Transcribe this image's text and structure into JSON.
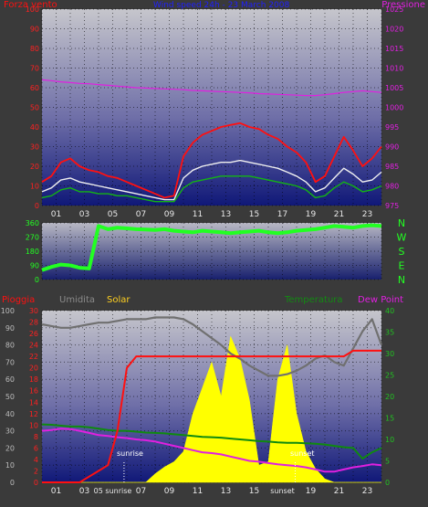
{
  "chart_data": [
    {
      "type": "line",
      "title": "Wind speed 24h - 23 March 2008",
      "left_label": "Forza vento",
      "right_label": "Pressione",
      "x_ticks": [
        "01",
        "03",
        "05",
        "07",
        "09",
        "11",
        "13",
        "15",
        "17",
        "19",
        "21",
        "23"
      ],
      "x_range": [
        0,
        24
      ],
      "ylim_left": [
        0,
        100
      ],
      "left_ticks": [
        "0",
        "10",
        "20",
        "30",
        "40",
        "50",
        "60",
        "70",
        "80",
        "90",
        "100"
      ],
      "ylim_right": [
        975,
        1025
      ],
      "right_ticks": [
        "975",
        "980",
        "985",
        "990",
        "995",
        "1000",
        "1005",
        "1010",
        "1015",
        "1020",
        "1025"
      ],
      "grid": true,
      "series": [
        {
          "color": "#ff1010",
          "values": [
            12,
            15,
            22,
            24,
            20,
            18,
            17,
            15,
            14,
            12,
            10,
            8,
            6,
            4,
            5,
            25,
            32,
            36,
            38,
            40,
            41,
            42,
            40,
            39,
            36,
            34,
            30,
            27,
            22,
            12,
            15,
            25,
            35,
            28,
            20,
            24,
            30
          ]
        },
        {
          "color": "#f0f0f0",
          "values": [
            7,
            9,
            13,
            14,
            12,
            11,
            10,
            9,
            8,
            7,
            6,
            5,
            4,
            3,
            3,
            14,
            18,
            20,
            21,
            22,
            22,
            23,
            22,
            21,
            20,
            19,
            17,
            15,
            12,
            7,
            9,
            14,
            19,
            16,
            12,
            13,
            17
          ]
        },
        {
          "color": "#14b414",
          "values": [
            4,
            5,
            8,
            9,
            7,
            7,
            6,
            6,
            5,
            5,
            4,
            3,
            2,
            2,
            2,
            9,
            12,
            13,
            14,
            15,
            15,
            15,
            15,
            14,
            13,
            12,
            11,
            10,
            8,
            4,
            5,
            9,
            12,
            10,
            7,
            8,
            10
          ]
        },
        {
          "color": "#e020e0",
          "axis": "right",
          "values": [
            1007,
            1006.8,
            1006.5,
            1006.3,
            1006.1,
            1006.0,
            1005.8,
            1005.6,
            1005.4,
            1005.2,
            1005.0,
            1004.9,
            1004.8,
            1004.7,
            1004.6,
            1004.5,
            1004.3,
            1004.2,
            1004.1,
            1004.0,
            1003.9,
            1003.8,
            1003.7,
            1003.5,
            1003.4,
            1003.3,
            1003.2,
            1003.1,
            1003.0,
            1003.0,
            1003.2,
            1003.5,
            1003.8,
            1004.0,
            1004.2,
            1004.0,
            1003.8
          ]
        }
      ]
    },
    {
      "type": "scatter",
      "left_ticks": [
        "0",
        "90",
        "180",
        "270",
        "360"
      ],
      "ylim": [
        0,
        360
      ],
      "right_labels": [
        "N",
        "W",
        "S",
        "E",
        "N"
      ],
      "series": [
        {
          "color": "#22ff22",
          "values": [
            60,
            80,
            95,
            90,
            75,
            70,
            340,
            320,
            330,
            325,
            320,
            318,
            315,
            320,
            310,
            305,
            300,
            310,
            305,
            300,
            295,
            300,
            305,
            310,
            300,
            295,
            300,
            310,
            315,
            320,
            330,
            340,
            335,
            330,
            340,
            345,
            340
          ]
        }
      ]
    },
    {
      "type": "line",
      "labels": {
        "rain": "Pioggia",
        "humidity": "Umidita",
        "solar": "Solar",
        "temperature": "Temperatura",
        "dew_point": "Dew Point"
      },
      "sunrise_label": "sunrise",
      "sunset_label": "sunset",
      "x_ticks": [
        "01",
        "03",
        "05",
        "07",
        "09",
        "11",
        "13",
        "15",
        "17",
        "19",
        "21",
        "23"
      ],
      "x_tick_labels_override": {
        "05": "05 sunrise",
        "17": "sunset"
      },
      "humidity_ticks": [
        "0",
        "10",
        "20",
        "30",
        "40",
        "50",
        "60",
        "70",
        "80",
        "90",
        "100"
      ],
      "rain_ticks": [
        "0",
        "2",
        "4",
        "6",
        "8",
        "10",
        "12",
        "14",
        "16",
        "18",
        "20",
        "22",
        "24",
        "26",
        "28",
        "30"
      ],
      "temperature_ticks": [
        "0",
        "5",
        "10",
        "15",
        "20",
        "25",
        "30",
        "35",
        "40"
      ],
      "series": [
        {
          "name": "humidity",
          "color": "#707070",
          "values": [
            92,
            91,
            90,
            90,
            91,
            92,
            93,
            93,
            94,
            95,
            95,
            95,
            96,
            96,
            96,
            95,
            92,
            88,
            84,
            80,
            75,
            72,
            68,
            65,
            62,
            62,
            63,
            65,
            68,
            72,
            74,
            70,
            68,
            78,
            88,
            95,
            80
          ]
        },
        {
          "name": "rain",
          "color": "#ff1010",
          "values": [
            0,
            0,
            0,
            0,
            0,
            1,
            2,
            3,
            9,
            20,
            22,
            22,
            22,
            22,
            22,
            22,
            22,
            22,
            22,
            22,
            22,
            22,
            22,
            22,
            22,
            22,
            22,
            22,
            22,
            22,
            22,
            22,
            22,
            23,
            23,
            23,
            23
          ]
        },
        {
          "name": "temperature",
          "color": "#0f8a0f",
          "values": [
            13.5,
            13.4,
            13.2,
            13,
            13,
            12.8,
            12.5,
            12.2,
            12,
            12,
            11.8,
            11.6,
            11.5,
            11.4,
            11.2,
            11,
            10.8,
            10.6,
            10.5,
            10.4,
            10.2,
            10,
            9.8,
            9.6,
            9.5,
            9.3,
            9.2,
            9.2,
            9.1,
            9.0,
            8.8,
            8.5,
            8.2,
            8,
            5.5,
            7,
            8
          ]
        },
        {
          "name": "dew_point",
          "color": "#e020e0",
          "values": [
            12,
            12.2,
            12.5,
            12.4,
            12,
            11.5,
            11,
            10.8,
            10.5,
            10.3,
            10,
            9.8,
            9.5,
            9,
            8.5,
            8,
            7.5,
            7,
            6.8,
            6.5,
            6,
            5.5,
            5,
            4.8,
            4.5,
            4.2,
            4,
            3.8,
            3.5,
            3,
            2.5,
            2.5,
            3,
            3.5,
            3.8,
            4.2,
            4
          ]
        },
        {
          "name": "solar",
          "color": "#ffff00",
          "values": [
            0,
            0,
            0,
            0,
            0,
            0,
            0,
            0,
            0,
            0,
            0,
            0,
            5,
            9,
            12,
            18,
            40,
            55,
            70,
            50,
            85,
            72,
            48,
            10,
            12,
            60,
            80,
            40,
            18,
            8,
            2,
            0,
            0,
            0,
            0,
            0,
            0
          ]
        }
      ]
    }
  ]
}
